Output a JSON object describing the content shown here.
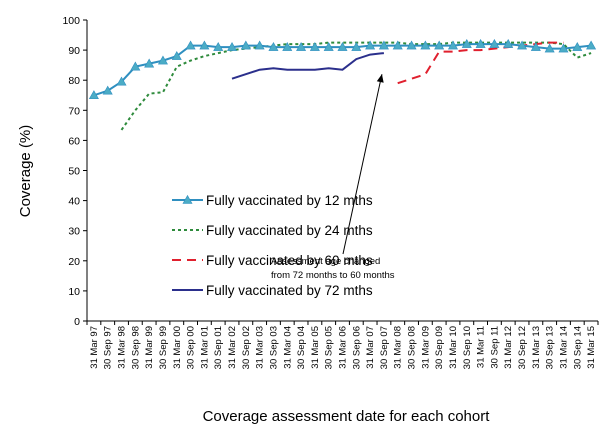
{
  "chart_data": {
    "type": "line",
    "title": "",
    "ylabel": "Coverage (%)",
    "xlabel": "Coverage assessment date for each cohort",
    "ylim": [
      0,
      100
    ],
    "yticks": [
      0,
      10,
      20,
      30,
      40,
      50,
      60,
      70,
      80,
      90,
      100
    ],
    "categories": [
      "31 Mar 97",
      "30 Sep 97",
      "31 Mar 98",
      "30 Sep 98",
      "31 Mar 99",
      "30 Sep 99",
      "31 Mar 00",
      "30 Sep 00",
      "31 Mar 01",
      "30 Sep 01",
      "31 Mar 02",
      "30 Sep 02",
      "31 Mar 03",
      "30 Sep 03",
      "31 Mar 04",
      "30 Sep 04",
      "31 Mar 05",
      "30 Sep 05",
      "31 Mar 06",
      "30 Sep 06",
      "31 Mar 07",
      "30 Sep 07",
      "31 Mar 08",
      "30 Sep 08",
      "31 Mar 09",
      "30 Sep 09",
      "31 Mar 10",
      "30 Sep 10",
      "31 Mar 11",
      "30 Sep 11",
      "31 Mar 12",
      "30 Sep 12",
      "31 Mar 13",
      "30 Sep 13",
      "31 Mar 14",
      "30 Sep 14",
      "31 Mar 15"
    ],
    "legend_position": "center-left",
    "grid": false,
    "series": [
      {
        "name": "Fully vaccinated by 12 mths",
        "color": "#4BACC6",
        "stroke": "#2F8FC0",
        "dash": "solid",
        "marker": "triangle",
        "values": [
          75.0,
          76.5,
          79.5,
          84.5,
          85.5,
          86.5,
          88.0,
          91.5,
          91.5,
          91.0,
          91.0,
          91.5,
          91.5,
          91.0,
          91.0,
          91.0,
          91.0,
          91.0,
          91.0,
          91.0,
          91.5,
          91.5,
          91.5,
          91.5,
          91.5,
          91.5,
          91.5,
          92.0,
          92.0,
          92.0,
          92.0,
          91.5,
          91.0,
          90.5,
          90.5,
          91.0,
          91.5
        ]
      },
      {
        "name": "Fully vaccinated by 24 mths",
        "color": "#2E8B3C",
        "stroke": "#2E8B3C",
        "dash": "dotted",
        "marker": "none",
        "values": [
          null,
          null,
          63.5,
          70.0,
          75.5,
          76.0,
          84.5,
          86.5,
          88.0,
          89.0,
          90.0,
          90.5,
          91.0,
          91.5,
          92.0,
          92.0,
          92.0,
          92.5,
          92.5,
          92.5,
          92.5,
          92.5,
          92.5,
          92.0,
          92.0,
          92.0,
          92.5,
          92.5,
          92.5,
          92.5,
          92.5,
          92.5,
          92.5,
          92.5,
          92.0,
          87.5,
          89.0
        ]
      },
      {
        "name": "Fully vaccinated by 60 mths",
        "color": "#E0202E",
        "stroke": "#E0202E",
        "dash": "dashed",
        "marker": "none",
        "values": [
          null,
          null,
          null,
          null,
          null,
          null,
          null,
          null,
          null,
          null,
          null,
          null,
          null,
          null,
          null,
          null,
          null,
          null,
          null,
          null,
          null,
          null,
          79.0,
          80.5,
          82.0,
          89.5,
          89.5,
          90.0,
          90.0,
          90.5,
          91.0,
          91.5,
          92.0,
          92.5,
          92.5,
          null,
          null
        ]
      },
      {
        "name": "Fully vaccinated by 72 mths",
        "color": "#2B2F8C",
        "stroke": "#2B2F8C",
        "dash": "solid",
        "marker": "none",
        "values": [
          null,
          null,
          null,
          null,
          null,
          null,
          null,
          null,
          null,
          null,
          80.5,
          82.0,
          83.5,
          84.0,
          83.5,
          83.5,
          83.5,
          84.0,
          83.5,
          87.0,
          88.5,
          89.0,
          null,
          null,
          null,
          null,
          null,
          null,
          null,
          null,
          null,
          null,
          null,
          null,
          null,
          null,
          null
        ]
      }
    ],
    "annotation": {
      "text_lines": [
        "Assessment age changed",
        "from 72 months to 60 months"
      ],
      "points_to_category": "30 Sep 07",
      "points_to_value": 82.0
    }
  }
}
